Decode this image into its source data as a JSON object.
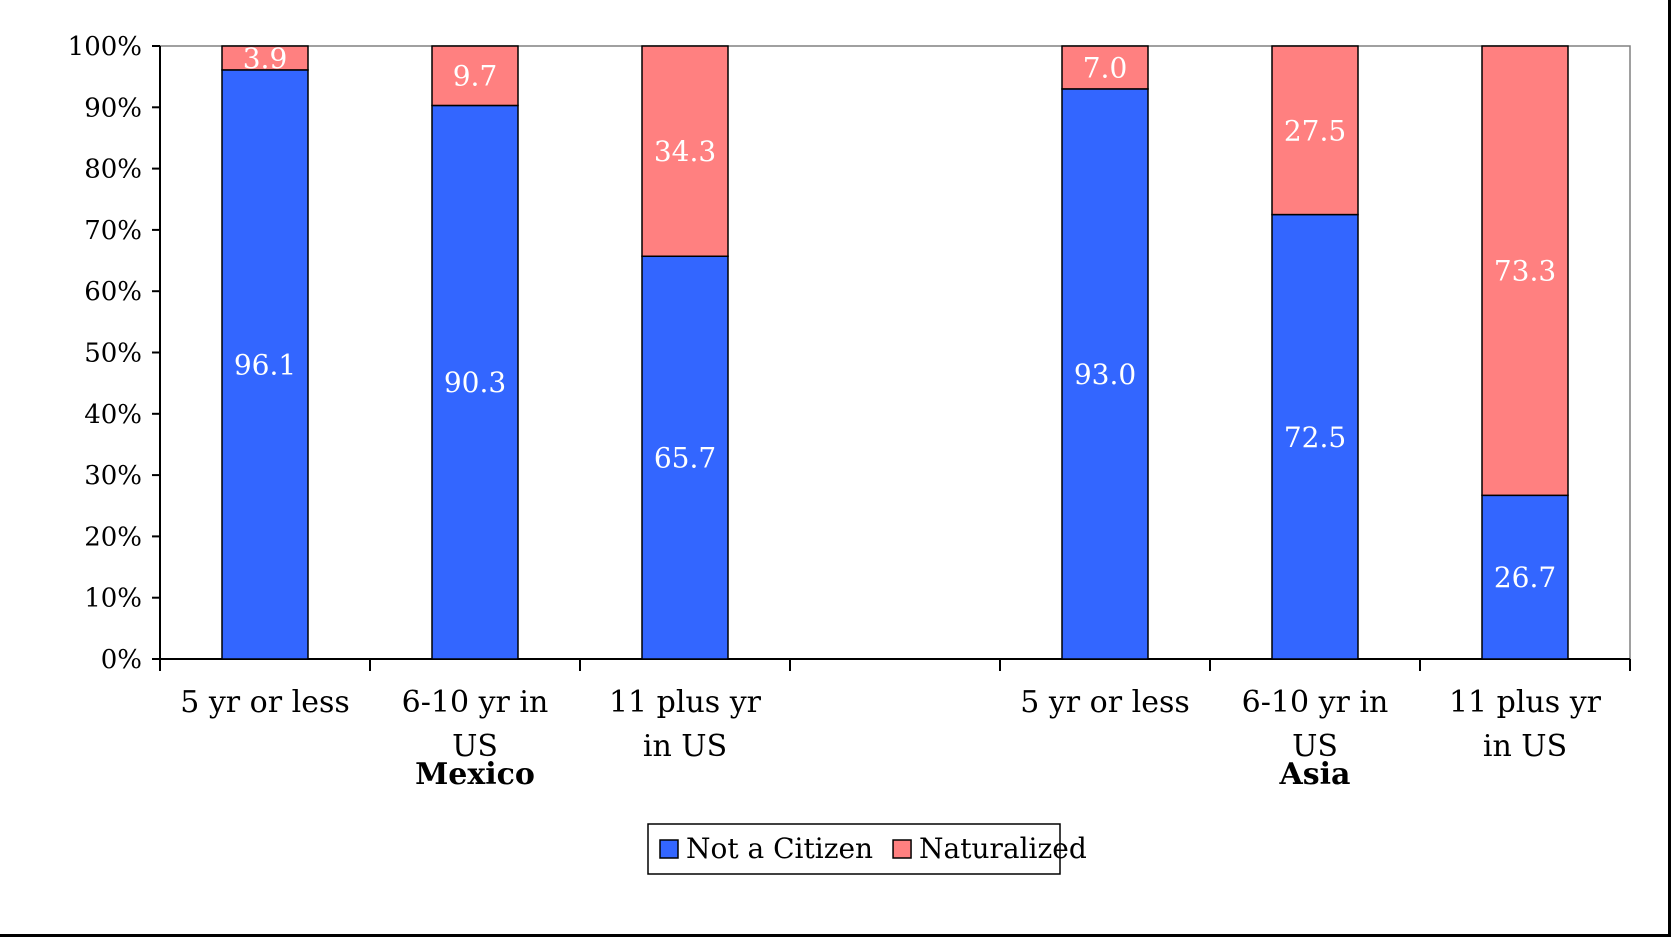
{
  "chart_data": {
    "type": "bar",
    "stacked": true,
    "percent_axis": true,
    "groups": [
      "Mexico",
      "Asia"
    ],
    "categories": [
      {
        "group": "Mexico",
        "label": [
          "5 yr or less"
        ]
      },
      {
        "group": "Mexico",
        "label": [
          "6-10 yr in",
          "US"
        ]
      },
      {
        "group": "Mexico",
        "label": [
          "11 plus yr",
          "in US"
        ]
      },
      {
        "group": "",
        "label": []
      },
      {
        "group": "Asia",
        "label": [
          "5 yr or less"
        ]
      },
      {
        "group": "Asia",
        "label": [
          "6-10 yr in",
          "US"
        ]
      },
      {
        "group": "Asia",
        "label": [
          "11 plus yr",
          "in US"
        ]
      }
    ],
    "series": [
      {
        "name": "Not a Citizen",
        "color": "#3366ff",
        "values": [
          96.1,
          90.3,
          65.7,
          null,
          93.0,
          72.5,
          26.7
        ],
        "labels": [
          "96.1",
          "90.3",
          "65.7",
          "",
          "93.0",
          "72.5",
          "26.7"
        ]
      },
      {
        "name": "Naturalized",
        "color": "#ff8080",
        "values": [
          3.9,
          9.7,
          34.3,
          null,
          7.0,
          27.5,
          73.3
        ],
        "labels": [
          "3.9",
          "9.7",
          "34.3",
          "",
          "7.0",
          "27.5",
          "73.3"
        ]
      }
    ],
    "ylim": [
      0,
      100
    ],
    "yticks": [
      "0%",
      "10%",
      "20%",
      "30%",
      "40%",
      "50%",
      "60%",
      "70%",
      "80%",
      "90%",
      "100%"
    ],
    "legend_position": "bottom",
    "grid": false
  }
}
